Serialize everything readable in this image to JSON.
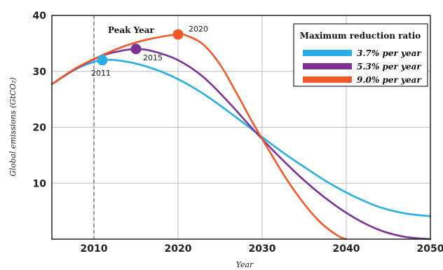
{
  "chart_data": {
    "type": "line",
    "title": "",
    "xlabel": "Year",
    "ylabel": "Global emissions (GtCO₂)",
    "xlim": [
      2005,
      2050
    ],
    "ylim": [
      0,
      40
    ],
    "xticks": [
      2010,
      2020,
      2030,
      2040,
      2050
    ],
    "yticks": [
      10,
      20,
      30,
      40
    ],
    "grid": true,
    "legend_title": "Maximum reduction ratio",
    "legend_position": "top-right",
    "annotation": "Peak Year",
    "annotation_year": 2010,
    "series": [
      {
        "name": "3.7% per year",
        "color": "#2aaee6",
        "peak": {
          "x": 2011,
          "y": 32,
          "label": "2011"
        },
        "x": [
          2005,
          2008,
          2011,
          2014,
          2017,
          2020,
          2023,
          2026,
          2029,
          2032,
          2035,
          2038,
          2041,
          2044,
          2047,
          2050
        ],
        "y": [
          27.7,
          30.5,
          32.0,
          31.7,
          30.5,
          28.6,
          26.0,
          22.8,
          19.4,
          16.0,
          12.9,
          10.0,
          7.6,
          5.7,
          4.6,
          4.1
        ]
      },
      {
        "name": "5.3% per year",
        "color": "#7b3294",
        "peak": {
          "x": 2015,
          "y": 34,
          "label": "2015"
        },
        "x": [
          2005,
          2008,
          2011,
          2013,
          2015,
          2017,
          2020,
          2023,
          2026,
          2029,
          2032,
          2035,
          2038,
          2041,
          2044,
          2047,
          2050
        ],
        "y": [
          27.7,
          30.6,
          32.8,
          33.6,
          34.0,
          33.6,
          32.0,
          29.0,
          24.5,
          19.5,
          14.8,
          10.5,
          6.8,
          3.8,
          1.6,
          0.4,
          0.0
        ]
      },
      {
        "name": "9.0% per year",
        "color": "#f05a2a",
        "peak": {
          "x": 2020,
          "y": 36.6,
          "label": "2020"
        },
        "x": [
          2005,
          2008,
          2011,
          2014,
          2017,
          2020,
          2021,
          2023,
          2025,
          2027,
          2029,
          2031,
          2033,
          2035,
          2037,
          2039,
          2040
        ],
        "y": [
          27.7,
          30.7,
          32.9,
          34.7,
          35.9,
          36.6,
          36.4,
          34.8,
          31.2,
          26.0,
          20.5,
          15.4,
          10.5,
          6.3,
          2.9,
          0.6,
          0.0
        ]
      }
    ]
  }
}
